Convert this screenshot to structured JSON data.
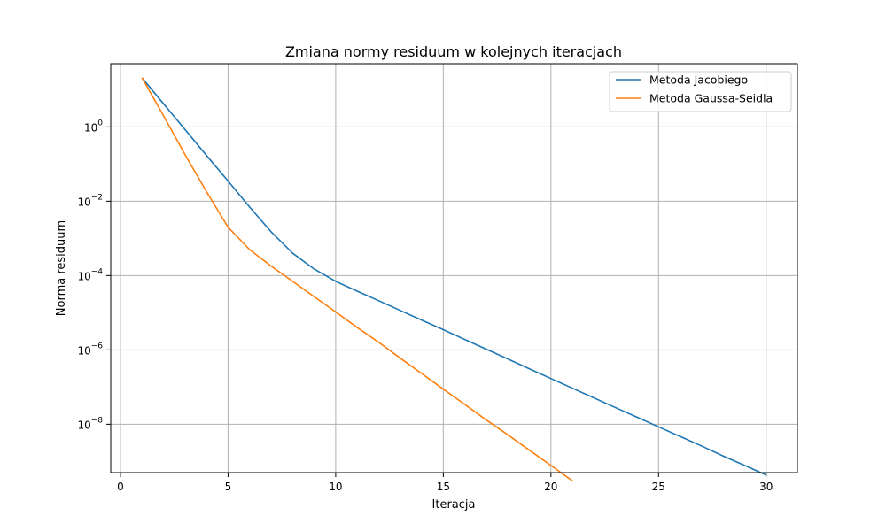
{
  "chart_data": {
    "type": "line",
    "title": "Zmiana normy residuum w kolejnych iteracjach",
    "xlabel": "Iteracja",
    "ylabel": "Norma residuum",
    "y_scale": "log",
    "grid": true,
    "legend_position": "top-right",
    "xlim": [
      -0.45,
      31.45
    ],
    "ylim": [
      5e-10,
      50
    ],
    "x_ticks": [
      0,
      5,
      10,
      15,
      20,
      25,
      30
    ],
    "y_ticks": [
      {
        "base": "10",
        "exp": "0",
        "value": 1
      },
      {
        "base": "10",
        "exp": "−2",
        "value": 0.01
      },
      {
        "base": "10",
        "exp": "−4",
        "value": 0.0001
      },
      {
        "base": "10",
        "exp": "−6",
        "value": 1e-06
      },
      {
        "base": "10",
        "exp": "−8",
        "value": 1e-08
      }
    ],
    "series": [
      {
        "name": "Metoda Jacobiego",
        "color": "#1f77b4",
        "x": [
          1,
          2,
          3,
          4,
          5,
          6,
          7,
          8,
          9,
          10,
          11,
          12,
          13,
          14,
          15,
          16,
          17,
          18,
          19,
          20,
          21,
          22,
          23,
          24,
          25,
          26,
          27,
          28,
          29,
          30
        ],
        "y": [
          21,
          4.2,
          0.85,
          0.17,
          0.035,
          0.007,
          0.0015,
          0.0004,
          0.00015,
          7e-05,
          3.8e-05,
          2.1e-05,
          1.15e-05,
          6.3e-06,
          3.5e-06,
          1.9e-06,
          1.04e-06,
          5.7e-07,
          3.1e-07,
          1.7e-07,
          9.3e-08,
          5.1e-08,
          2.8e-08,
          1.55e-08,
          8.5e-09,
          4.7e-09,
          2.6e-09,
          1.4e-09,
          7.8e-10,
          4.3e-10
        ]
      },
      {
        "name": "Metoda Gaussa-Seidla",
        "color": "#ff7f0e",
        "x": [
          1,
          2,
          3,
          4,
          5,
          6,
          7,
          8,
          9,
          10,
          11,
          12,
          13,
          14,
          15,
          16,
          17,
          18,
          19,
          20,
          21
        ],
        "y": [
          21,
          2.0,
          0.18,
          0.018,
          0.002,
          0.0005,
          0.00018,
          7e-05,
          2.7e-05,
          1.05e-05,
          4e-06,
          1.6e-06,
          6e-07,
          2.3e-07,
          8.8e-08,
          3.4e-08,
          1.3e-08,
          5.2e-09,
          2e-09,
          7.8e-10,
          3e-10
        ]
      }
    ]
  }
}
